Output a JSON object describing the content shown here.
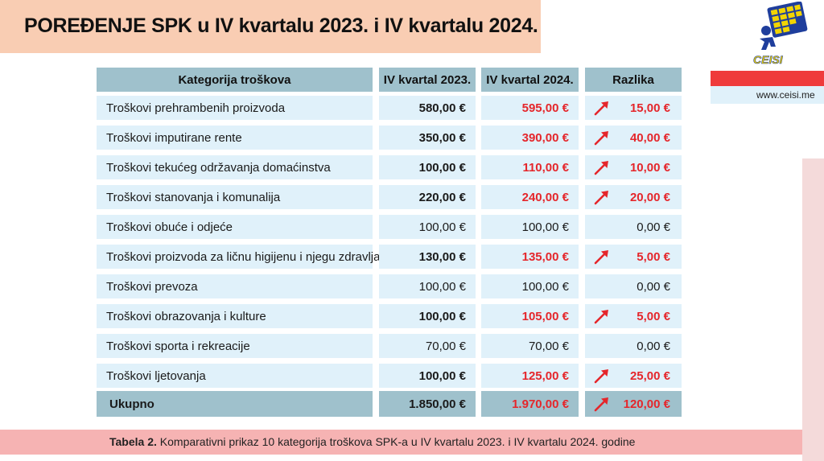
{
  "title": "POREĐENJE SPK u IV kvartalu 2023. i IV kvartalu 2024.",
  "logo_text": "CEISI",
  "url": "www.ceisi.me",
  "table": {
    "headers": [
      "Kategorija troškova",
      "IV kvartal 2023.",
      "IV kvartal 2024.",
      "Razlika"
    ],
    "rows": [
      {
        "category": "Troškovi prehrambenih proizvoda",
        "q2023": "580,00 €",
        "q2024": "595,00 €",
        "diff": "15,00 €",
        "increase": true
      },
      {
        "category": "Troškovi imputirane rente",
        "q2023": "350,00 €",
        "q2024": "390,00 €",
        "diff": "40,00 €",
        "increase": true
      },
      {
        "category": "Troškovi tekućeg održavanja domaćinstva",
        "q2023": "100,00 €",
        "q2024": "110,00 €",
        "diff": "10,00 €",
        "increase": true
      },
      {
        "category": "Troškovi stanovanja i komunalija",
        "q2023": "220,00 €",
        "q2024": "240,00 €",
        "diff": "20,00 €",
        "increase": true
      },
      {
        "category": "Troškovi obuće i odjeće",
        "q2023": "100,00 €",
        "q2024": "100,00 €",
        "diff": "0,00 €",
        "increase": false
      },
      {
        "category": "Troškovi proizvoda za ličnu higijenu i njegu zdravlja",
        "q2023": "130,00 €",
        "q2024": "135,00 €",
        "diff": "5,00 €",
        "increase": true
      },
      {
        "category": "Troškovi prevoza",
        "q2023": "100,00 €",
        "q2024": "100,00 €",
        "diff": "0,00 €",
        "increase": false
      },
      {
        "category": "Troškovi obrazovanja i kulture",
        "q2023": "100,00 €",
        "q2024": "105,00 €",
        "diff": "5,00 €",
        "increase": true
      },
      {
        "category": "Troškovi sporta i rekreacije",
        "q2023": "70,00 €",
        "q2024": "70,00 €",
        "diff": "0,00 €",
        "increase": false
      },
      {
        "category": "Troškovi ljetovanja",
        "q2023": "100,00 €",
        "q2024": "125,00 €",
        "diff": "25,00 €",
        "increase": true
      }
    ],
    "total": {
      "label": "Ukupno",
      "q2023": "1.850,00 €",
      "q2024": "1.970,00 €",
      "diff": "120,00 €",
      "increase": true
    }
  },
  "caption": {
    "prefix": "Tabela 2.",
    "text": " Komparativni prikaz 10 kategorija troškova SPK-a u IV kvartalu 2023. i IV kvartalu 2024. godine"
  },
  "colors": {
    "title_band": "#f9cdb3",
    "header": "#9fc1cc",
    "row": "#e0f1fa",
    "increase": "#e5262b",
    "caption_band": "#f6b3b3"
  },
  "icons": {
    "increase": "arrow-up-right-icon"
  }
}
